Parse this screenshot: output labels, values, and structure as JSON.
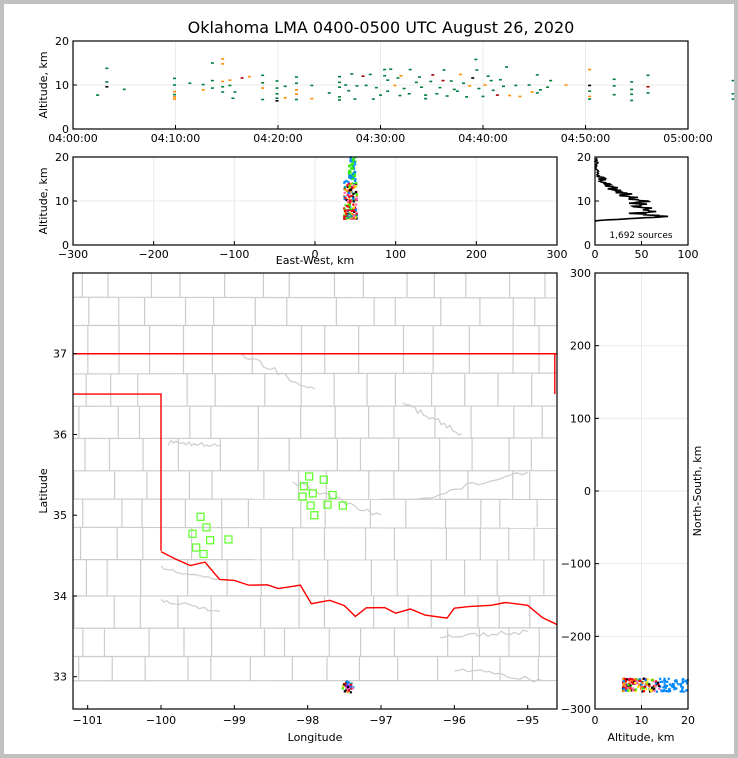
{
  "window": {
    "background": "#c0c0c0"
  },
  "title": "Oklahoma LMA 0400-0500 UTC August 26, 2020",
  "colors": {
    "grid": "#ebebeb",
    "county": "#cccccc",
    "state": "#ff0000",
    "station": "#66ff33",
    "hist": "#000000"
  },
  "chart_data": [
    {
      "id": "time-altitude",
      "type": "scatter",
      "title": "",
      "xlabel": "",
      "ylabel": "Altitude, km",
      "x_tick_labels": [
        "04:00:00",
        "04:10:00",
        "04:20:00",
        "04:30:00",
        "04:40:00",
        "04:50:00",
        "05:00:00"
      ],
      "xlim_minutes": [
        0,
        60
      ],
      "y_ticks": [
        0,
        10,
        20
      ],
      "ylim": [
        0,
        20
      ],
      "grid": true,
      "points_minutes_alt": [
        [
          2.4,
          7.7
        ],
        [
          3.3,
          13.8
        ],
        [
          3.3,
          10.7
        ],
        [
          3.3,
          9.6
        ],
        [
          5.0,
          9.0
        ],
        [
          9.9,
          11.5
        ],
        [
          9.9,
          10.0
        ],
        [
          9.9,
          8.5
        ],
        [
          9.9,
          7.8
        ],
        [
          9.9,
          7.3
        ],
        [
          9.9,
          6.8
        ],
        [
          11.4,
          10.4
        ],
        [
          12.7,
          8.9
        ],
        [
          12.7,
          10.1
        ],
        [
          13.6,
          15.0
        ],
        [
          13.6,
          11.0
        ],
        [
          13.6,
          9.3
        ],
        [
          14.6,
          15.9
        ],
        [
          14.6,
          14.8
        ],
        [
          14.6,
          10.8
        ],
        [
          14.6,
          9.6
        ],
        [
          14.6,
          8.4
        ],
        [
          15.3,
          11.1
        ],
        [
          15.3,
          9.9
        ],
        [
          15.6,
          7.0
        ],
        [
          15.8,
          8.4
        ],
        [
          16.5,
          11.6
        ],
        [
          17.2,
          11.9
        ],
        [
          18.5,
          12.2
        ],
        [
          18.5,
          10.5
        ],
        [
          18.5,
          9.3
        ],
        [
          18.5,
          6.7
        ],
        [
          19.9,
          10.9
        ],
        [
          19.9,
          9.3
        ],
        [
          19.9,
          8.0
        ],
        [
          19.9,
          7.0
        ],
        [
          19.9,
          6.4
        ],
        [
          20.7,
          9.7
        ],
        [
          20.7,
          7.1
        ],
        [
          21.8,
          11.8
        ],
        [
          21.8,
          10.4
        ],
        [
          21.8,
          8.9
        ],
        [
          21.8,
          7.9
        ],
        [
          21.8,
          6.7
        ],
        [
          23.3,
          9.9
        ],
        [
          23.3,
          6.9
        ],
        [
          25.0,
          8.2
        ],
        [
          26.0,
          11.9
        ],
        [
          26.0,
          10.6
        ],
        [
          26.0,
          9.5
        ],
        [
          26.0,
          7.3
        ],
        [
          26.0,
          6.6
        ],
        [
          26.6,
          10.0
        ],
        [
          26.9,
          8.7
        ],
        [
          27.2,
          12.5
        ],
        [
          27.5,
          6.8
        ],
        [
          27.7,
          9.8
        ],
        [
          28.3,
          12.0
        ],
        [
          28.6,
          9.9
        ],
        [
          29.0,
          12.4
        ],
        [
          29.3,
          6.8
        ],
        [
          29.6,
          9.4
        ],
        [
          30.0,
          7.7
        ],
        [
          30.4,
          13.5
        ],
        [
          30.4,
          12.1
        ],
        [
          30.7,
          8.6
        ],
        [
          30.7,
          11.1
        ],
        [
          31.0,
          13.6
        ],
        [
          31.4,
          9.9
        ],
        [
          31.7,
          11.6
        ],
        [
          31.9,
          7.6
        ],
        [
          32.0,
          12.1
        ],
        [
          32.3,
          9.2
        ],
        [
          32.8,
          8.0
        ],
        [
          32.9,
          13.5
        ],
        [
          33.5,
          10.6
        ],
        [
          33.8,
          11.8
        ],
        [
          34.0,
          9.5
        ],
        [
          34.4,
          7.7
        ],
        [
          34.4,
          6.9
        ],
        [
          34.9,
          10.8
        ],
        [
          35.1,
          12.3
        ],
        [
          35.5,
          8.0
        ],
        [
          35.8,
          9.4
        ],
        [
          36.1,
          11.0
        ],
        [
          36.2,
          13.4
        ],
        [
          36.5,
          7.5
        ],
        [
          36.9,
          10.9
        ],
        [
          37.2,
          9.0
        ],
        [
          37.5,
          8.6
        ],
        [
          37.8,
          12.4
        ],
        [
          38.1,
          10.4
        ],
        [
          38.4,
          7.3
        ],
        [
          38.7,
          9.8
        ],
        [
          39.0,
          11.6
        ],
        [
          39.3,
          15.8
        ],
        [
          39.4,
          13.4
        ],
        [
          39.6,
          9.2
        ],
        [
          40.0,
          7.4
        ],
        [
          40.2,
          10.0
        ],
        [
          40.5,
          12.0
        ],
        [
          40.8,
          11.0
        ],
        [
          41.0,
          8.8
        ],
        [
          41.4,
          7.7
        ],
        [
          41.7,
          11.2
        ],
        [
          42.0,
          9.7
        ],
        [
          42.3,
          14.1
        ],
        [
          42.6,
          7.6
        ],
        [
          43.2,
          9.9
        ],
        [
          43.6,
          7.4
        ],
        [
          44.5,
          10.0
        ],
        [
          44.8,
          8.4
        ],
        [
          45.3,
          12.3
        ],
        [
          45.3,
          8.2
        ],
        [
          45.6,
          8.9
        ],
        [
          46.3,
          9.5
        ],
        [
          46.6,
          11.0
        ],
        [
          48.1,
          10.0
        ],
        [
          50.4,
          13.5
        ],
        [
          50.4,
          9.9
        ],
        [
          50.4,
          8.6
        ],
        [
          50.4,
          7.4
        ],
        [
          50.4,
          6.8
        ],
        [
          52.8,
          11.3
        ],
        [
          52.8,
          9.8
        ],
        [
          52.8,
          7.8
        ],
        [
          54.5,
          10.7
        ],
        [
          54.5,
          9.0
        ],
        [
          54.5,
          7.9
        ],
        [
          54.5,
          6.5
        ],
        [
          56.1,
          12.2
        ],
        [
          56.1,
          9.6
        ],
        [
          56.1,
          8.2
        ],
        [
          64.4,
          11.0
        ],
        [
          64.4,
          8.0
        ],
        [
          64.4,
          6.8
        ],
        [
          72.4,
          10.8
        ],
        [
          72.4,
          6.5
        ]
      ],
      "colors": [
        "#007f3f",
        "#ff8c00",
        "#aa0000",
        "#000000"
      ]
    },
    {
      "id": "ew-altitude",
      "type": "scatter",
      "xlabel": "East-West, km",
      "ylabel": "Altitude, km",
      "x_ticks": [
        -300,
        -200,
        -100,
        0,
        100,
        200,
        300
      ],
      "xlim": [
        -300,
        300
      ],
      "y_ticks": [
        0,
        10,
        20
      ],
      "ylim": [
        0,
        20
      ],
      "grid": true,
      "cluster": {
        "x_range": [
          36,
          52
        ],
        "alt_range": [
          6,
          20
        ],
        "dense_alt_range": [
          6,
          15
        ]
      }
    },
    {
      "id": "altitude-histogram",
      "type": "line",
      "x_ticks": [
        0,
        50,
        100
      ],
      "xlim": [
        0,
        100
      ],
      "y_ticks": [
        0,
        10,
        20
      ],
      "ylim": [
        0,
        20
      ],
      "annotation": "1,692 sources",
      "profile_alt_count": [
        [
          5.5,
          0
        ],
        [
          5.8,
          20
        ],
        [
          6.2,
          55
        ],
        [
          6.5,
          78
        ],
        [
          6.8,
          60
        ],
        [
          7.2,
          40
        ],
        [
          7.6,
          65
        ],
        [
          8.0,
          50
        ],
        [
          8.4,
          58
        ],
        [
          8.8,
          42
        ],
        [
          9.2,
          55
        ],
        [
          9.6,
          38
        ],
        [
          10.0,
          58
        ],
        [
          10.4,
          35
        ],
        [
          10.8,
          42
        ],
        [
          11.2,
          30
        ],
        [
          11.6,
          36
        ],
        [
          12.0,
          25
        ],
        [
          12.4,
          28
        ],
        [
          12.8,
          18
        ],
        [
          13.2,
          20
        ],
        [
          13.6,
          12
        ],
        [
          14.0,
          14
        ],
        [
          14.5,
          8
        ],
        [
          15.0,
          6
        ],
        [
          15.5,
          4
        ],
        [
          16.0,
          2
        ],
        [
          17.0,
          3
        ],
        [
          18.0,
          1
        ],
        [
          19.0,
          2
        ],
        [
          20.0,
          1
        ]
      ]
    },
    {
      "id": "plan-view-map",
      "type": "scatter",
      "xlabel": "Longitude",
      "ylabel": "Latitude",
      "x_ticks": [
        -101,
        -100,
        -99,
        -98,
        -97,
        -96,
        -95
      ],
      "xlim": [
        -101.2,
        -94.6
      ],
      "y_ticks": [
        33,
        34,
        35,
        36,
        37
      ],
      "ylim": [
        32.6,
        38.0
      ],
      "stations": [
        [
          -99.46,
          34.98
        ],
        [
          -99.38,
          34.85
        ],
        [
          -99.57,
          34.77
        ],
        [
          -99.33,
          34.69
        ],
        [
          -99.52,
          34.6
        ],
        [
          -99.42,
          34.52
        ],
        [
          -99.08,
          34.7
        ],
        [
          -97.98,
          35.48
        ],
        [
          -97.78,
          35.44
        ],
        [
          -98.05,
          35.36
        ],
        [
          -97.93,
          35.27
        ],
        [
          -98.07,
          35.23
        ],
        [
          -97.66,
          35.25
        ],
        [
          -97.96,
          35.12
        ],
        [
          -97.73,
          35.13
        ],
        [
          -97.52,
          35.12
        ],
        [
          -97.91,
          35.0
        ]
      ],
      "cluster": {
        "lon": -97.45,
        "lat": 32.87
      }
    },
    {
      "id": "altitude-ns",
      "type": "scatter",
      "xlabel": "Altitude, km",
      "ylabel": "North-South, km",
      "x_ticks": [
        0,
        10,
        20
      ],
      "xlim": [
        0,
        20
      ],
      "y_ticks": [
        -300,
        -200,
        -100,
        0,
        100,
        200,
        300
      ],
      "ylim": [
        -300,
        300
      ],
      "grid": true,
      "cluster": {
        "alt_range": [
          6,
          20
        ],
        "ns_range": [
          -276,
          -258
        ]
      }
    }
  ]
}
